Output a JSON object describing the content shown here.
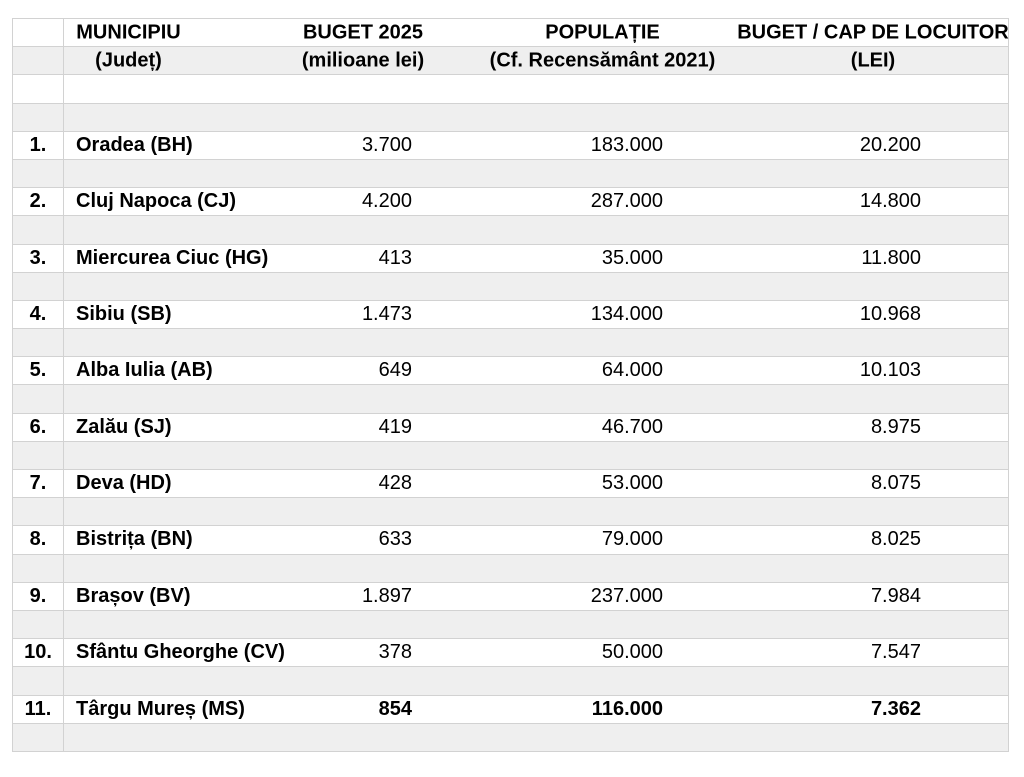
{
  "colors": {
    "background": "#ffffff",
    "band": "#efefef",
    "gridline": "#d2d2d2",
    "text": "#000000"
  },
  "chart_data": {
    "type": "table",
    "title": "",
    "layout": {
      "header_rows": 2,
      "separator_rows": "gray band between every data row",
      "last_row_bold": true
    },
    "columns": [
      {
        "id": "nr",
        "line1": "",
        "line2": ""
      },
      {
        "id": "municipiu",
        "line1": "MUNICIPIU",
        "line2": "(Județ)"
      },
      {
        "id": "buget",
        "line1": "BUGET 2025",
        "line2": "(milioane lei)"
      },
      {
        "id": "populatie",
        "line1": "POPULAȚIE",
        "line2": "(Cf. Recensământ 2021)"
      },
      {
        "id": "per_capita",
        "line1": "BUGET / CAP DE LOCUITOR",
        "line2": "(LEI)"
      }
    ],
    "rows": [
      {
        "nr": "1.",
        "municipiu": "Oradea (BH)",
        "buget": "3.700",
        "populatie": "183.000",
        "per_capita": "20.200",
        "bold": false
      },
      {
        "nr": "2.",
        "municipiu": "Cluj Napoca (CJ)",
        "buget": "4.200",
        "populatie": "287.000",
        "per_capita": "14.800",
        "bold": false
      },
      {
        "nr": "3.",
        "municipiu": "Miercurea Ciuc (HG)",
        "buget": "413",
        "populatie": "35.000",
        "per_capita": "11.800",
        "bold": false
      },
      {
        "nr": "4.",
        "municipiu": "Sibiu (SB)",
        "buget": "1.473",
        "populatie": "134.000",
        "per_capita": "10.968",
        "bold": false
      },
      {
        "nr": "5.",
        "municipiu": "Alba Iulia (AB)",
        "buget": "649",
        "populatie": "64.000",
        "per_capita": "10.103",
        "bold": false
      },
      {
        "nr": "6.",
        "municipiu": "Zalău (SJ)",
        "buget": "419",
        "populatie": "46.700",
        "per_capita": "8.975",
        "bold": false
      },
      {
        "nr": "7.",
        "municipiu": "Deva (HD)",
        "buget": "428",
        "populatie": "53.000",
        "per_capita": "8.075",
        "bold": false
      },
      {
        "nr": "8.",
        "municipiu": "Bistrița (BN)",
        "buget": "633",
        "populatie": "79.000",
        "per_capita": "8.025",
        "bold": false
      },
      {
        "nr": "9.",
        "municipiu": "Brașov (BV)",
        "buget": "1.897",
        "populatie": "237.000",
        "per_capita": "7.984",
        "bold": false
      },
      {
        "nr": "10.",
        "municipiu": "Sfântu Gheorghe (CV)",
        "buget": "378",
        "populatie": "50.000",
        "per_capita": "7.547",
        "bold": false
      },
      {
        "nr": "11.",
        "municipiu": "Târgu Mureș (MS)",
        "buget": "854",
        "populatie": "116.000",
        "per_capita": "7.362",
        "bold": true
      }
    ]
  }
}
